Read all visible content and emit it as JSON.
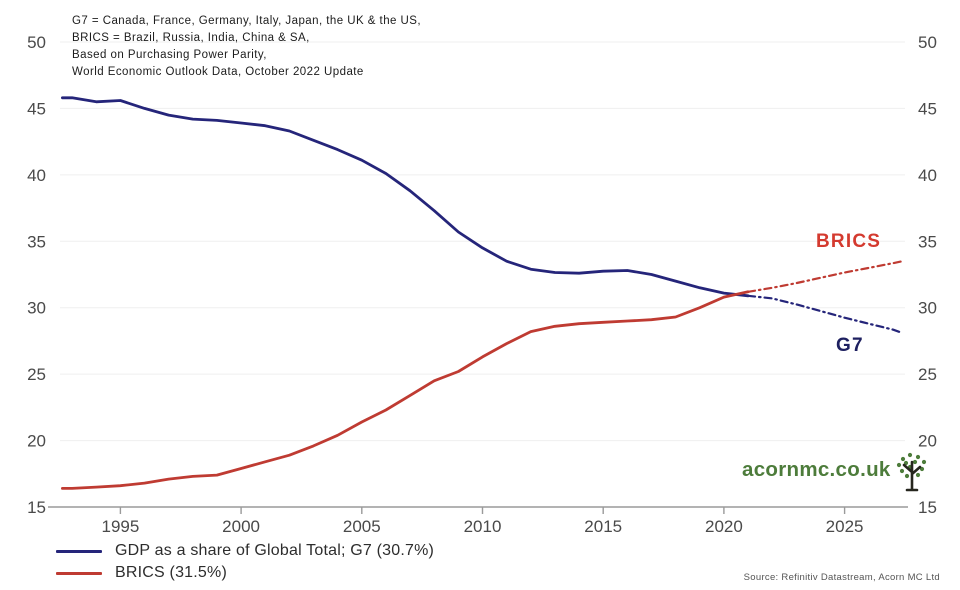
{
  "annotation": {
    "line1": "G7 = Canada, France, Germany, Italy, Japan, the UK & the US,",
    "line2": "BRICS = Brazil, Russia, India, China & SA,",
    "line3": "Based on Purchasing Power Parity,",
    "line4": "World Economic Outlook Data, October 2022 Update"
  },
  "series_labels": {
    "brics": "BRICS",
    "brics_color": "#d43a2f",
    "g7": "G7",
    "g7_color": "#1e2060"
  },
  "legend": [
    {
      "label": "GDP as a share of Global Total; G7 (30.7%)",
      "color": "#25257a"
    },
    {
      "label": "BRICS (31.5%)",
      "color": "#bf3b32"
    }
  ],
  "branding": {
    "site": "acornmc.co.uk",
    "green": "#4d7c3b",
    "source": "Source: Refinitiv Datastream, Acorn MC Ltd"
  },
  "chart_data": {
    "type": "line",
    "title": "",
    "x_range": [
      1992.5,
      2027.5
    ],
    "y_range": [
      15,
      50
    ],
    "x_ticks": [
      1995,
      2000,
      2005,
      2010,
      2015,
      2020,
      2025
    ],
    "y_ticks": [
      15,
      20,
      25,
      30,
      35,
      40,
      45,
      50
    ],
    "grid": "faint-horizontal",
    "legend_position": "bottom-left",
    "colors": {
      "grid": "#efefef",
      "axis": "#9a9a9a",
      "tick_label": "#4a4a4a"
    },
    "series": [
      {
        "id": "g7-actual",
        "name": "G7",
        "color": "#25257a",
        "style": "solid",
        "points": [
          [
            1992.6,
            45.8
          ],
          [
            1993,
            45.8
          ],
          [
            1994,
            45.5
          ],
          [
            1995,
            45.6
          ],
          [
            1996,
            45.0
          ],
          [
            1997,
            44.5
          ],
          [
            1998,
            44.2
          ],
          [
            1999,
            44.1
          ],
          [
            2000,
            43.9
          ],
          [
            2001,
            43.7
          ],
          [
            2002,
            43.3
          ],
          [
            2003,
            42.6
          ],
          [
            2004,
            41.9
          ],
          [
            2005,
            41.1
          ],
          [
            2006,
            40.1
          ],
          [
            2007,
            38.8
          ],
          [
            2008,
            37.3
          ],
          [
            2009,
            35.7
          ],
          [
            2010,
            34.5
          ],
          [
            2011,
            33.5
          ],
          [
            2012,
            32.9
          ],
          [
            2013,
            32.65
          ],
          [
            2014,
            32.6
          ],
          [
            2015,
            32.75
          ],
          [
            2016,
            32.8
          ],
          [
            2017,
            32.5
          ],
          [
            2018,
            32.0
          ],
          [
            2019,
            31.5
          ],
          [
            2020,
            31.1
          ],
          [
            2021,
            30.9
          ]
        ]
      },
      {
        "id": "g7-projection",
        "name": "G7 projection",
        "color": "#25257a",
        "style": "dashdot",
        "points": [
          [
            2021,
            30.9
          ],
          [
            2022,
            30.7
          ],
          [
            2023,
            30.25
          ],
          [
            2024,
            29.75
          ],
          [
            2025,
            29.25
          ],
          [
            2026,
            28.8
          ],
          [
            2027,
            28.35
          ],
          [
            2027.4,
            28.1
          ]
        ]
      },
      {
        "id": "brics-actual",
        "name": "BRICS",
        "color": "#bf3b32",
        "style": "solid",
        "points": [
          [
            1992.6,
            16.4
          ],
          [
            1993,
            16.4
          ],
          [
            1994,
            16.5
          ],
          [
            1995,
            16.6
          ],
          [
            1996,
            16.8
          ],
          [
            1997,
            17.1
          ],
          [
            1998,
            17.3
          ],
          [
            1999,
            17.4
          ],
          [
            2000,
            17.9
          ],
          [
            2001,
            18.4
          ],
          [
            2002,
            18.9
          ],
          [
            2003,
            19.6
          ],
          [
            2004,
            20.4
          ],
          [
            2005,
            21.4
          ],
          [
            2006,
            22.3
          ],
          [
            2007,
            23.4
          ],
          [
            2008,
            24.5
          ],
          [
            2009,
            25.2
          ],
          [
            2010,
            26.3
          ],
          [
            2011,
            27.3
          ],
          [
            2012,
            28.2
          ],
          [
            2013,
            28.6
          ],
          [
            2014,
            28.8
          ],
          [
            2015,
            28.9
          ],
          [
            2016,
            29.0
          ],
          [
            2017,
            29.1
          ],
          [
            2018,
            29.3
          ],
          [
            2019,
            30.0
          ],
          [
            2020,
            30.8
          ],
          [
            2021,
            31.2
          ]
        ]
      },
      {
        "id": "brics-projection",
        "name": "BRICS projection",
        "color": "#bf3b32",
        "style": "dashdot",
        "points": [
          [
            2021,
            31.2
          ],
          [
            2022,
            31.5
          ],
          [
            2023,
            31.85
          ],
          [
            2024,
            32.25
          ],
          [
            2025,
            32.65
          ],
          [
            2026,
            33.0
          ],
          [
            2027,
            33.35
          ],
          [
            2027.4,
            33.5
          ]
        ]
      }
    ]
  }
}
